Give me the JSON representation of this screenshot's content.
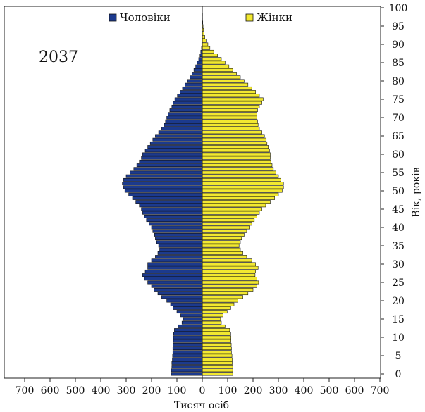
{
  "chart_data": {
    "type": "bar",
    "orientation": "horizontal-population-pyramid",
    "annotation": "2037",
    "xlabel": "Тисяч осіб",
    "ylabel": "Вік, років",
    "xlim": [
      -700,
      700
    ],
    "ylim": [
      0,
      100
    ],
    "x_ticks": [
      700,
      600,
      500,
      400,
      300,
      200,
      100,
      0,
      100,
      200,
      300,
      400,
      500,
      600,
      700
    ],
    "y_ticks": [
      0,
      5,
      10,
      15,
      20,
      25,
      30,
      35,
      40,
      45,
      50,
      55,
      60,
      65,
      70,
      75,
      80,
      85,
      90,
      95,
      100
    ],
    "grid": false,
    "legend_position": "top",
    "ages": [
      0,
      1,
      2,
      3,
      4,
      5,
      6,
      7,
      8,
      9,
      10,
      11,
      12,
      13,
      14,
      15,
      16,
      17,
      18,
      19,
      20,
      21,
      22,
      23,
      24,
      25,
      26,
      27,
      28,
      29,
      30,
      31,
      32,
      33,
      34,
      35,
      36,
      37,
      38,
      39,
      40,
      41,
      42,
      43,
      44,
      45,
      46,
      47,
      48,
      49,
      50,
      51,
      52,
      53,
      54,
      55,
      56,
      57,
      58,
      59,
      60,
      61,
      62,
      63,
      64,
      65,
      66,
      67,
      68,
      69,
      70,
      71,
      72,
      73,
      74,
      75,
      76,
      77,
      78,
      79,
      80,
      81,
      82,
      83,
      84,
      85,
      86,
      87,
      88,
      89,
      90,
      91,
      92,
      93,
      94,
      95,
      96,
      97,
      98,
      99,
      100
    ],
    "series": [
      {
        "name": "Чоловіки",
        "color": "#1c3a8e",
        "values": [
          122,
          122,
          120,
          120,
          118,
          117,
          116,
          116,
          115,
          114,
          114,
          113,
          110,
          95,
          80,
          75,
          85,
          100,
          115,
          125,
          140,
          160,
          175,
          190,
          200,
          215,
          228,
          235,
          225,
          215,
          215,
          200,
          185,
          175,
          168,
          172,
          180,
          185,
          188,
          195,
          200,
          210,
          220,
          228,
          235,
          240,
          248,
          262,
          275,
          290,
          305,
          310,
          315,
          310,
          300,
          285,
          270,
          258,
          248,
          240,
          235,
          225,
          215,
          205,
          195,
          185,
          172,
          160,
          150,
          145,
          140,
          135,
          128,
          120,
          115,
          108,
          98,
          88,
          78,
          68,
          58,
          48,
          40,
          33,
          26,
          20,
          14,
          9,
          6,
          3,
          2,
          1,
          1,
          1,
          0,
          0,
          0,
          0,
          0,
          0,
          0
        ]
      },
      {
        "name": "Жінки",
        "color": "#f2e830",
        "values": [
          120,
          120,
          120,
          118,
          118,
          117,
          115,
          115,
          114,
          113,
          113,
          112,
          108,
          90,
          75,
          72,
          82,
          98,
          112,
          125,
          140,
          160,
          180,
          200,
          215,
          222,
          215,
          208,
          210,
          220,
          210,
          195,
          175,
          160,
          150,
          145,
          150,
          155,
          165,
          175,
          185,
          195,
          205,
          215,
          225,
          235,
          250,
          268,
          285,
          300,
          315,
          320,
          320,
          310,
          300,
          290,
          280,
          275,
          270,
          268,
          268,
          265,
          260,
          255,
          252,
          245,
          235,
          225,
          220,
          218,
          215,
          215,
          218,
          225,
          235,
          240,
          225,
          210,
          195,
          180,
          165,
          150,
          135,
          120,
          105,
          90,
          75,
          60,
          45,
          30,
          22,
          15,
          10,
          7,
          5,
          3,
          2,
          1,
          1,
          0,
          0
        ]
      }
    ]
  }
}
